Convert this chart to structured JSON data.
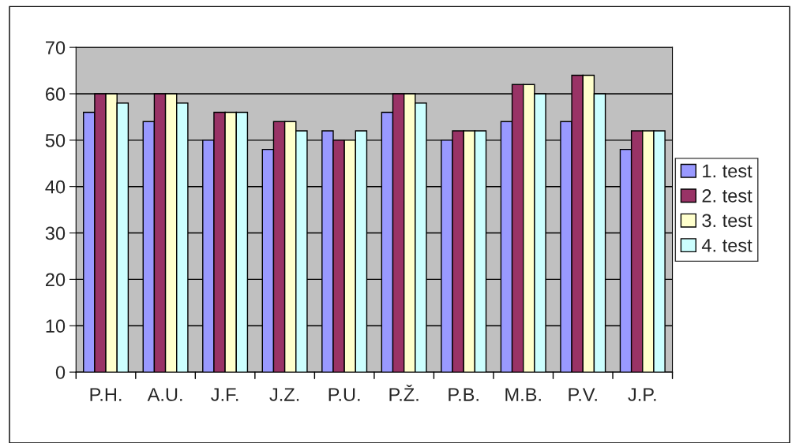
{
  "chart_data": {
    "type": "bar",
    "categories": [
      "P.H.",
      "A.U.",
      "J.F.",
      "J.Z.",
      "P.U.",
      "P.Ž.",
      "P.B.",
      "M.B.",
      "P.V.",
      "J.P."
    ],
    "series": [
      {
        "name": "1. test",
        "color": "#9999ff",
        "values": [
          56,
          54,
          50,
          48,
          52,
          56,
          50,
          54,
          54,
          48
        ]
      },
      {
        "name": "2. test",
        "color": "#993366",
        "values": [
          60,
          60,
          56,
          54,
          50,
          60,
          52,
          62,
          64,
          52
        ]
      },
      {
        "name": "3. test",
        "color": "#ffffcc",
        "values": [
          60,
          60,
          56,
          54,
          50,
          60,
          52,
          62,
          64,
          52
        ]
      },
      {
        "name": "4. test",
        "color": "#ccffff",
        "values": [
          58,
          58,
          56,
          52,
          52,
          58,
          52,
          60,
          60,
          52
        ]
      }
    ],
    "ylim": [
      0,
      70
    ],
    "yticks": [
      0,
      10,
      20,
      30,
      40,
      50,
      60,
      70
    ],
    "grid": "y",
    "legend": "right"
  }
}
